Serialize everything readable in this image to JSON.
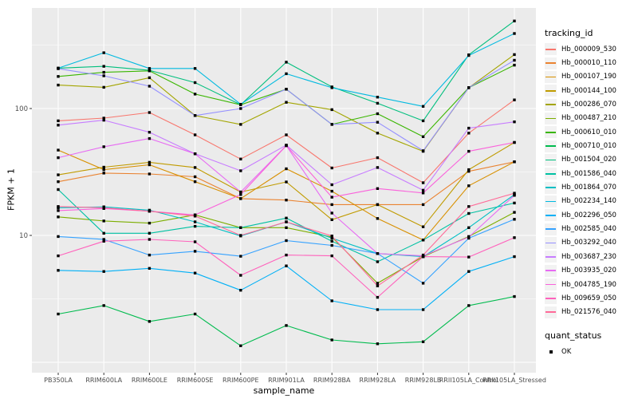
{
  "figure": {
    "background": "#FFFFFF",
    "panel_bg": "#EBEBEB",
    "grid_color": "#FFFFFF",
    "axis_text_color": "#4D4D4D",
    "tick_color": "#333333",
    "point_color": "#000000",
    "point_shape": "square"
  },
  "legend": {
    "tracking_title": "tracking_id",
    "quant_title": "quant_status",
    "quant_items": [
      {
        "label": "OK",
        "marker": "black-square"
      }
    ],
    "key_bg": "#F2F2F2"
  },
  "chart_data": {
    "type": "line",
    "title": "",
    "xlabel": "sample_name",
    "ylabel": "FPKM + 1",
    "y_scale": "log10",
    "ylim": [
      0.85,
      620
    ],
    "grid": true,
    "legend_position": "right",
    "yticks": [
      {
        "value": 100,
        "label": "100"
      },
      {
        "value": 10,
        "label": "10"
      }
    ],
    "y_major_gridlines": [
      1,
      10,
      100
    ],
    "y_minor_gridlines": [
      3.1623,
      31.623,
      316.23
    ],
    "categories": [
      "PB350LA",
      "RRIM600LA",
      "RRIM600LE",
      "RRIM600SE",
      "RRIM600PE",
      "RRIM901LA",
      "RRIM928BA",
      "RRIM928LA",
      "RRIM928LB",
      "RRII105LA_Control",
      "RRII105LA_Stressed"
    ],
    "series": [
      {
        "name": "Hb_000009_530",
        "color": "#F8766D",
        "values": [
          80,
          84,
          93,
          62,
          40,
          62,
          34,
          41,
          26,
          64,
          117
        ]
      },
      {
        "name": "Hb_000010_110",
        "color": "#EA8331",
        "values": [
          26.5,
          31,
          30.5,
          29,
          19.5,
          19,
          17.5,
          17.5,
          17.5,
          32,
          38
        ]
      },
      {
        "name": "Hb_000107_190",
        "color": "#D89000",
        "values": [
          47,
          33,
          36,
          26.5,
          19.5,
          33.5,
          22.3,
          13.6,
          9.2,
          24.6,
          38
        ]
      },
      {
        "name": "Hb_000144_100",
        "color": "#C09B00",
        "values": [
          30,
          34.5,
          37.7,
          34.3,
          22,
          26.4,
          13.3,
          17.5,
          11.7,
          33,
          54
        ]
      },
      {
        "name": "Hb_000286_070",
        "color": "#A3A500",
        "values": [
          153,
          147,
          175,
          88,
          75,
          112,
          98,
          64,
          46,
          146,
          266
        ]
      },
      {
        "name": "Hb_000487_210",
        "color": "#7CAE00",
        "values": [
          14,
          13,
          12.5,
          14.5,
          11.5,
          11.5,
          9.7,
          4.2,
          6.8,
          9.8,
          15.2
        ]
      },
      {
        "name": "Hb_000610_010",
        "color": "#39B600",
        "values": [
          179,
          193,
          198,
          130,
          107,
          142,
          75,
          91,
          60,
          146,
          220
        ]
      },
      {
        "name": "Hb_000710_010",
        "color": "#00BB4E",
        "values": [
          2.4,
          2.8,
          2.1,
          2.4,
          1.35,
          1.95,
          1.5,
          1.4,
          1.45,
          2.8,
          3.3
        ]
      },
      {
        "name": "Hb_001504_020",
        "color": "#00BF7D",
        "values": [
          208,
          215,
          200,
          160,
          107,
          232,
          148,
          110,
          80,
          265,
          490
        ]
      },
      {
        "name": "Hb_001586_040",
        "color": "#00C1A3",
        "values": [
          23,
          10.4,
          10.4,
          11.8,
          11.5,
          13.7,
          9,
          6.2,
          9.2,
          14.9,
          18
        ]
      },
      {
        "name": "Hb_001864_070",
        "color": "#00BFC4",
        "values": [
          16.5,
          16.8,
          15.8,
          12.8,
          9.9,
          12.8,
          9.5,
          7.2,
          6.8,
          11.5,
          21
        ]
      },
      {
        "name": "Hb_002234_140",
        "color": "#00BAE0",
        "values": [
          208,
          275,
          207,
          207,
          108,
          188,
          146,
          123,
          104,
          262,
          390
        ]
      },
      {
        "name": "Hb_002296_050",
        "color": "#00B0F6",
        "values": [
          5.3,
          5.2,
          5.5,
          5.05,
          3.7,
          5.75,
          3.05,
          2.6,
          2.6,
          5.2,
          6.8
        ]
      },
      {
        "name": "Hb_002585_040",
        "color": "#35A2FF",
        "values": [
          9.8,
          9.3,
          7.0,
          7.5,
          6.85,
          9.1,
          8.35,
          7.2,
          4.2,
          9.5,
          13.4
        ]
      },
      {
        "name": "Hb_003292_040",
        "color": "#9590FF",
        "values": [
          206,
          181,
          150,
          88,
          100,
          142,
          75,
          78,
          46.5,
          146,
          240
        ]
      },
      {
        "name": "Hb_003687_230",
        "color": "#C77CFF",
        "values": [
          74,
          81,
          65,
          44,
          32.3,
          51.5,
          25.1,
          34.3,
          22.7,
          70,
          78.5
        ]
      },
      {
        "name": "Hb_003935_020",
        "color": "#E76BF3",
        "values": [
          41,
          50,
          58,
          44,
          22,
          51,
          15,
          7.2,
          6.9,
          9.7,
          20.7
        ]
      },
      {
        "name": "Hb_004785_190",
        "color": "#FA62DB",
        "values": [
          15.7,
          16.3,
          15.5,
          14.5,
          21,
          51,
          20,
          23.4,
          21.6,
          46,
          54
        ]
      },
      {
        "name": "Hb_009659_050",
        "color": "#FF62BC",
        "values": [
          6.9,
          9.0,
          9.3,
          8.9,
          4.85,
          7.0,
          6.9,
          3.25,
          6.8,
          6.75,
          9.6
        ]
      },
      {
        "name": "Hb_021576_040",
        "color": "#FF6A98",
        "values": [
          16.9,
          16.5,
          15.5,
          14.2,
          10,
          12.8,
          9.9,
          4.0,
          7.0,
          16.9,
          21.5
        ]
      }
    ]
  }
}
